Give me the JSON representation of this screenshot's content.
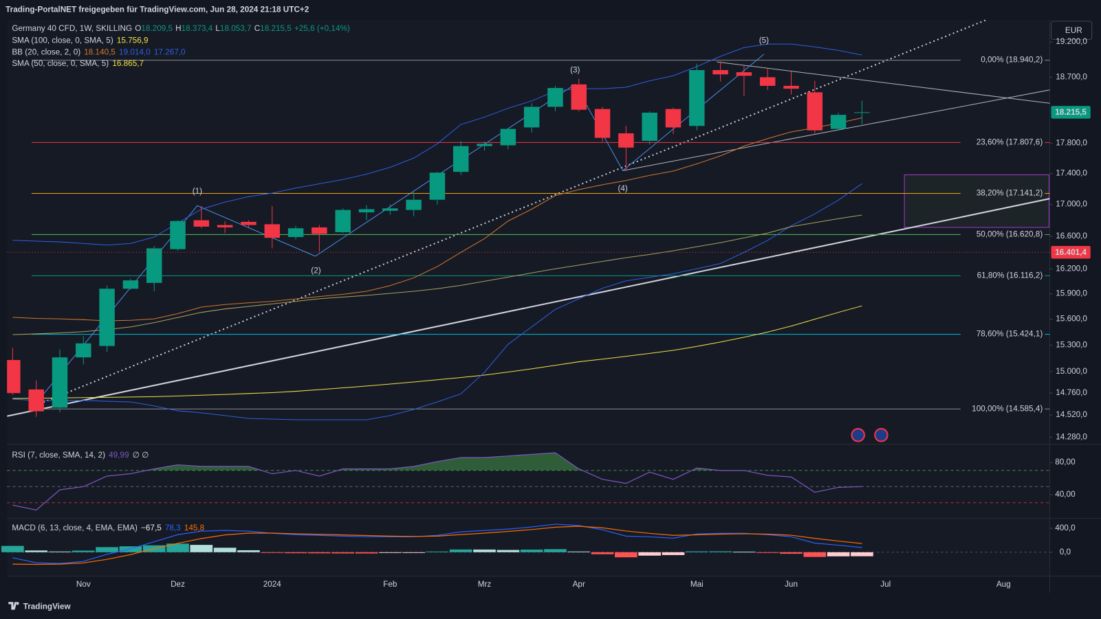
{
  "chart_data": {
    "type": "candlestick",
    "source": "Trading-PortalNET freigegeben für TradingView.com, Jun 28, 2024 21:18 UTC+2",
    "symbol": "Germany 40 CFD, 1W, SKILLING",
    "ohlc_labels": [
      {
        "key": "O",
        "value": "18.209,5"
      },
      {
        "key": "H",
        "value": "18.373,4"
      },
      {
        "key": "L",
        "value": "18.053,7"
      },
      {
        "key": "C",
        "value": "18.215,5"
      }
    ],
    "change": "+25,6 (+0,14%)",
    "currency": "EUR",
    "brand": "TradingView",
    "ylog": true,
    "ylim": [
      14213,
      19522
    ],
    "yticks": [
      {
        "value": 19200,
        "label": "19.200,0"
      },
      {
        "value": 18700,
        "label": "18.700,0"
      },
      {
        "value": 17800,
        "label": "17.800,0"
      },
      {
        "value": 17400,
        "label": "17.400,0"
      },
      {
        "value": 17000,
        "label": "17.000,0"
      },
      {
        "value": 16600,
        "label": "16.600,0"
      },
      {
        "value": 16200,
        "label": "16.200,0"
      },
      {
        "value": 15900,
        "label": "15.900,0"
      },
      {
        "value": 15600,
        "label": "15.600,0"
      },
      {
        "value": 15300,
        "label": "15.300,0"
      },
      {
        "value": 15000,
        "label": "15.000,0"
      },
      {
        "value": 14760,
        "label": "14.760,0"
      },
      {
        "value": 14520,
        "label": "14.520,0"
      },
      {
        "value": 14280,
        "label": "14.280,0"
      }
    ],
    "categories": [
      null,
      null,
      null,
      "Nov",
      null,
      null,
      null,
      "Dez",
      null,
      null,
      null,
      "2024",
      null,
      null,
      null,
      null,
      "Feb",
      null,
      null,
      null,
      "Mrz",
      null,
      null,
      null,
      "Apr",
      null,
      null,
      null,
      null,
      "Mai",
      null,
      null,
      null,
      "Jun",
      null,
      null,
      null,
      "Jul",
      null,
      null,
      null,
      null,
      "Aug",
      null
    ],
    "up_color": "#089981",
    "down_color": "#f23645",
    "open": [
      15130,
      14800,
      14600,
      15160,
      15290,
      15960,
      16030,
      16440,
      16800,
      16740,
      16780,
      16750,
      16590,
      16710,
      16650,
      16900,
      16920,
      16930,
      17060,
      17420,
      17760,
      17770,
      18010,
      18290,
      18600,
      18260,
      17930,
      17830,
      18260,
      18030,
      18800,
      18770,
      18700,
      18580,
      18490,
      17990,
      18209.5,
      null,
      null,
      null,
      null,
      null,
      null,
      null
    ],
    "high": [
      15270,
      14900,
      15250,
      15400,
      16000,
      16080,
      16480,
      16800,
      16980,
      16790,
      16800,
      16980,
      16730,
      16740,
      16950,
      16990,
      17000,
      17160,
      17420,
      17830,
      17820,
      18000,
      18340,
      18580,
      18680,
      18290,
      18030,
      18230,
      18280,
      18890,
      18920,
      18860,
      18830,
      18780,
      18650,
      18210,
      18373.4,
      null,
      null,
      null,
      null,
      null,
      null,
      null
    ],
    "low": [
      14740,
      14500,
      14550,
      15080,
      15220,
      15950,
      15930,
      16420,
      16700,
      16640,
      16700,
      16450,
      16560,
      16410,
      16640,
      16800,
      16870,
      16850,
      17000,
      17380,
      17700,
      17720,
      17940,
      18230,
      18230,
      17820,
      17430,
      17780,
      17920,
      17970,
      18640,
      18440,
      18520,
      18460,
      17930,
      17970,
      18053.7,
      null,
      null,
      null,
      null,
      null,
      null,
      null
    ],
    "close": [
      14760,
      14560,
      15160,
      15320,
      15960,
      16060,
      16450,
      16790,
      16720,
      16710,
      16740,
      16580,
      16700,
      16630,
      16930,
      16940,
      16950,
      17060,
      17410,
      17760,
      17790,
      17990,
      18290,
      18550,
      18250,
      17870,
      17740,
      18210,
      18010,
      18800,
      18740,
      18720,
      18580,
      18540,
      17970,
      18180,
      18215.5,
      null,
      null,
      null,
      null,
      null,
      null,
      null
    ],
    "overlays": [
      {
        "label": "SMA (100, close, 0, SMA, 5)",
        "lines": [
          {
            "color": "#f2e14a",
            "value_label": "15.756,9",
            "values": [
              14700,
              14703,
              14706,
              14710,
              14713,
              14716,
              14720,
              14728,
              14736,
              14745,
              14755,
              14765,
              14780,
              14798,
              14818,
              14838,
              14860,
              14883,
              14908,
              14933,
              14960,
              14995,
              15030,
              15070,
              15110,
              15140,
              15172,
              15205,
              15240,
              15285,
              15335,
              15390,
              15450,
              15520,
              15600,
              15680,
              15756.9,
              null,
              null,
              null,
              null,
              null,
              null,
              null
            ]
          }
        ]
      },
      {
        "label": "BB (20, close, 2, 0)",
        "lines": [
          {
            "color": "#d2772e",
            "value_label": "18.140,5",
            "values": [
              15622,
              15609,
              15604,
              15594,
              15580,
              15587,
              15604,
              15665,
              15742,
              15772,
              15792,
              15810,
              15839,
              15867,
              15894,
              15929,
              15997,
              16090,
              16227,
              16401,
              16571,
              16790,
              16940,
              17113,
              17190,
              17253,
              17308,
              17374,
              17430,
              17525,
              17630,
              17760,
              17859,
              17950,
              18005,
              18068,
              18140.5,
              null,
              null,
              null,
              null,
              null,
              null,
              null
            ]
          },
          {
            "color": "#2f5fe0",
            "value_label": "19.014,0",
            "values": [
              16550,
              16540,
              16530,
              16510,
              16490,
              16510,
              16590,
              16765,
              16940,
              17030,
              17100,
              17145,
              17210,
              17265,
              17320,
              17390,
              17480,
              17600,
              17790,
              18050,
              18150,
              18270,
              18370,
              18510,
              18540,
              18540,
              18560,
              18650,
              18720,
              18850,
              18995,
              19120,
              19170,
              19170,
              19130,
              19080,
              19014,
              null,
              null,
              null,
              null,
              null,
              null,
              null
            ]
          },
          {
            "color": "#2f5fe0",
            "value_label": "17.267,0",
            "values": [
              14693,
              14678,
              14678,
              14678,
              14670,
              14663,
              14618,
              14565,
              14543,
              14513,
              14483,
              14475,
              14468,
              14468,
              14468,
              14468,
              14513,
              14580,
              14663,
              14752,
              14992,
              15310,
              15510,
              15715,
              15840,
              15965,
              16055,
              16097,
              16140,
              16200,
              16265,
              16400,
              16548,
              16730,
              16880,
              17055,
              17267,
              null,
              null,
              null,
              null,
              null,
              null,
              null
            ]
          }
        ]
      },
      {
        "label": "SMA (50, close, 0, SMA, 5)",
        "lines": [
          {
            "color": "#a8a35f",
            "value_label": "16.865,7",
            "values": [
              15420,
              15430,
              15440,
              15455,
              15480,
              15510,
              15560,
              15620,
              15680,
              15720,
              15750,
              15780,
              15810,
              15840,
              15860,
              15880,
              15905,
              15930,
              15960,
              16000,
              16050,
              16100,
              16150,
              16200,
              16245,
              16290,
              16335,
              16375,
              16420,
              16470,
              16520,
              16580,
              16640,
              16720,
              16770,
              16820,
              16865.7,
              null,
              null,
              null,
              null,
              null,
              null,
              null
            ]
          }
        ]
      }
    ],
    "fib_levels": [
      {
        "label": "0,00% (18.940,2)",
        "value": 18940.2,
        "color": "#8a8d96"
      },
      {
        "label": "23,60% (17.807,6)",
        "value": 17807.6,
        "color": "#f23645"
      },
      {
        "label": "38,20% (17.141,2)",
        "value": 17141.2,
        "color": "#f7a21b"
      },
      {
        "label": "50,00% (16.620,8)",
        "value": 16620.8,
        "color": "#4caf50"
      },
      {
        "label": "61,80% (16.116,2)",
        "value": 16116.2,
        "color": "#089981"
      },
      {
        "label": "78,60% (15.424,1)",
        "value": 15424.1,
        "color": "#00bcd4"
      },
      {
        "label": "100,00% (14.585,4)",
        "value": 14585.4,
        "color": "#8a8d96"
      }
    ],
    "price_tags": [
      {
        "value": 18215.5,
        "label": "18.215,5",
        "color": "#089981"
      },
      {
        "value": 16401.4,
        "label": "16.401,4",
        "color": "#f23645"
      }
    ],
    "waves": [
      "(1)",
      "(2)",
      "(3)",
      "(4)",
      "(5)"
    ],
    "rsi": {
      "label": "RSI (7, close, SMA, 14, 2)",
      "value_label": "49,99",
      "extra": "∅ ∅",
      "color": "#7e57c2",
      "fill_color": "#4caf50",
      "ylim": [
        11.3,
        101.7
      ],
      "yticks": [
        {
          "value": 40,
          "label": "40,00"
        },
        {
          "value": 80,
          "label": "80,00"
        }
      ],
      "levels": [
        {
          "value": 70,
          "color": "#4caf50"
        },
        {
          "value": 50,
          "color": "#787b86"
        },
        {
          "value": 30,
          "color": "#f23645"
        }
      ],
      "values": [
        27,
        21,
        46,
        50,
        63,
        66,
        72,
        77,
        75,
        75,
        75,
        66,
        70,
        63,
        72,
        72,
        72,
        75,
        81,
        86,
        86,
        88,
        90,
        92,
        72,
        59,
        54,
        68,
        59,
        73,
        70,
        70,
        64,
        62,
        43,
        49,
        49.99,
        null,
        null,
        null,
        null,
        null,
        null,
        null
      ]
    },
    "macd": {
      "label": "MACD (6, 13, close, 4, EMA, EMA)",
      "ylim": [
        -388,
        553
      ],
      "yticks": [
        {
          "value": 400,
          "label": "400,0"
        },
        {
          "value": 0,
          "label": "0,0"
        }
      ],
      "hist": {
        "value_label": "−67,5",
        "colors": [
          "#26a69a",
          "#b2dfdb",
          "#ffcdd2",
          "#ff5252"
        ],
        "values": [
          106,
          29,
          12,
          27,
          85,
          99,
          116,
          144,
          123,
          75,
          33,
          -2,
          -16,
          -18,
          -20,
          -21,
          -11,
          -6,
          12,
          46,
          45,
          38,
          44,
          51,
          12,
          -34,
          -85,
          -57,
          -48,
          14,
          15,
          9,
          -9,
          -26,
          -79,
          -69,
          -67.5,
          null,
          null,
          null,
          null,
          null,
          null,
          null
        ]
      },
      "macd_line": {
        "color": "#2962ff",
        "value_label": "78,3",
        "values": [
          -94,
          -176,
          -188,
          -153,
          -35,
          59,
          176,
          294,
          353,
          365,
          353,
          318,
          294,
          282,
          270,
          259,
          259,
          259,
          282,
          341,
          365,
          388,
          424,
          471,
          447,
          376,
          270,
          259,
          235,
          306,
          318,
          318,
          294,
          259,
          153,
          118,
          78.3,
          null,
          null,
          null,
          null,
          null,
          null,
          null
        ]
      },
      "signal_line": {
        "color": "#ff6d00",
        "value_label": "145,8",
        "values": [
          -200,
          -205,
          -200,
          -180,
          -120,
          -40,
          60,
          150,
          230,
          290,
          320,
          320,
          310,
          300,
          290,
          280,
          270,
          265,
          270,
          295,
          320,
          350,
          380,
          420,
          435,
          410,
          355,
          316,
          283,
          292,
          303,
          309,
          303,
          285,
          232,
          187,
          145.8,
          null,
          null,
          null,
          null,
          null,
          null,
          null
        ]
      }
    }
  }
}
